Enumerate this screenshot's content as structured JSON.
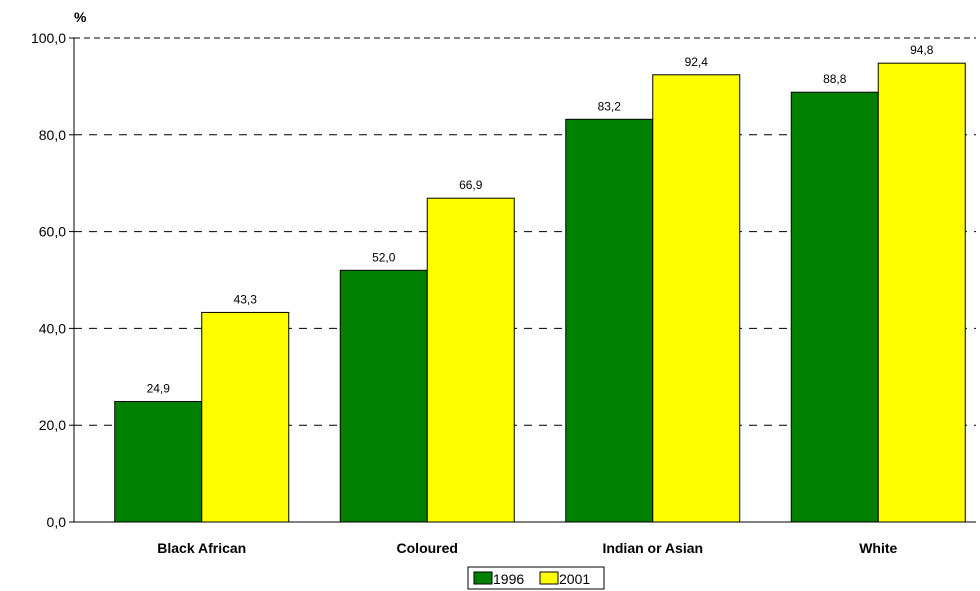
{
  "chart_data": {
    "type": "bar",
    "unit_label": "%",
    "categories": [
      "Black African",
      "Coloured",
      "Indian or Asian",
      "White"
    ],
    "series": [
      {
        "name": "1996",
        "color": "#008000",
        "values": [
          24.9,
          52.0,
          83.2,
          88.8
        ],
        "labels": [
          "24,9",
          "52,0",
          "83,2",
          "88,8"
        ]
      },
      {
        "name": "2001",
        "color": "#FFFF00",
        "values": [
          43.3,
          66.9,
          92.4,
          94.8
        ],
        "labels": [
          "43,3",
          "66,9",
          "92,4",
          "94,8"
        ]
      }
    ],
    "y_ticks": [
      0,
      20,
      40,
      60,
      80,
      100
    ],
    "y_tick_labels": [
      "0,0",
      "20,0",
      "40,0",
      "60,0",
      "80,0",
      "100,0"
    ],
    "ylim": [
      0,
      100
    ],
    "grid": "dashed-horizontal",
    "legend_position": "bottom-center"
  }
}
